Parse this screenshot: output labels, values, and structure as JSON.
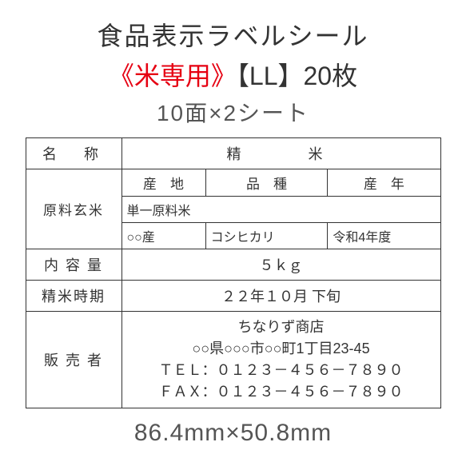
{
  "header": {
    "line1": "食品表示ラベルシール",
    "rice_only": "《米専用》",
    "size_qty": "【LL】20枚",
    "line3": "10面×2シート"
  },
  "table": {
    "name_label": "名　称",
    "name_value": "精　　米",
    "raw_label": "原料玄米",
    "origin_header": "産　地",
    "variety_header": "品　種",
    "year_header": "産　年",
    "single_raw": "単一原料米",
    "origin_value": "○○産",
    "variety_value": "コシヒカリ",
    "year_value": "令和4年度",
    "content_label": "内 容 量",
    "content_value": "５ｋｇ",
    "milling_label": "精米時期",
    "milling_value": "２２年１０月 下旬",
    "seller_label": "販 売 者",
    "seller_name": "ちなりず商店",
    "seller_address": "○○県○○○市○○町1丁目23-45",
    "seller_tel": "ＴＥＬ：０１２３－４５６－７８９０",
    "seller_fax": "ＦＡＸ：０１２３－４５６－７８９０"
  },
  "dimensions": "86.4mm×50.8mm",
  "colors": {
    "text": "#333333",
    "accent_red": "#e60012",
    "subtext": "#555555",
    "border": "#333333",
    "background": "#ffffff"
  }
}
